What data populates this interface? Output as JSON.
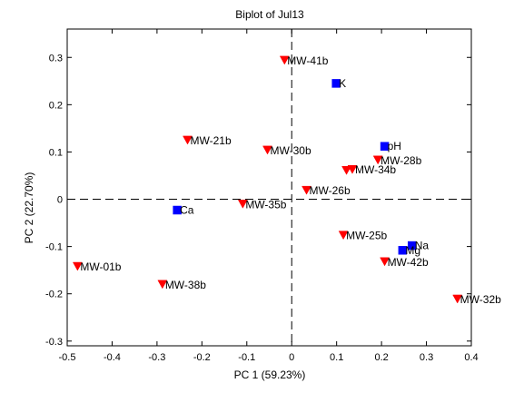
{
  "chart_data": {
    "type": "scatter",
    "title": "Biplot  of Jul13",
    "xlabel": "PC 1 (59.23%)",
    "ylabel": "PC 2 (22.70%)",
    "xlim": [
      -0.5,
      0.4
    ],
    "ylim": [
      -0.31,
      0.36
    ],
    "xticks": [
      -0.5,
      -0.4,
      -0.3,
      -0.2,
      -0.1,
      0,
      0.1,
      0.2,
      0.3,
      0.4
    ],
    "yticks": [
      -0.3,
      -0.2,
      -0.1,
      0,
      0.1,
      0.2,
      0.3
    ],
    "xtick_labels": [
      "-0.5",
      "-0.4",
      "-0.3",
      "-0.2",
      "-0.1",
      "0",
      "0.1",
      "0.2",
      "0.3",
      "0.4"
    ],
    "ytick_labels": [
      "-0.3",
      "-0.2",
      "-0.1",
      "0",
      "0.1",
      "0.2",
      "0.3"
    ],
    "grid": false,
    "reference_lines": {
      "x": 0,
      "y": 0,
      "style": "dashed"
    },
    "series": [
      {
        "marker": "triangle-down",
        "color": "#ff0000",
        "points": [
          {
            "label": "MW-41b",
            "x": -0.016,
            "y": 0.293
          },
          {
            "label": "MW-21b",
            "x": -0.232,
            "y": 0.124
          },
          {
            "label": "MW-30b",
            "x": -0.054,
            "y": 0.103
          },
          {
            "label": "MW-28b",
            "x": 0.192,
            "y": 0.082
          },
          {
            "label": "MW-34b",
            "x": 0.135,
            "y": 0.062
          },
          {
            "label": "",
            "x": 0.122,
            "y": 0.06
          },
          {
            "label": "MW-26b",
            "x": 0.033,
            "y": 0.018
          },
          {
            "label": "MW-35b",
            "x": -0.109,
            "y": -0.011
          },
          {
            "label": "MW-25b",
            "x": 0.115,
            "y": -0.077
          },
          {
            "label": "MW-42b",
            "x": 0.207,
            "y": -0.133
          },
          {
            "label": "MW-01b",
            "x": -0.477,
            "y": -0.143
          },
          {
            "label": "MW-38b",
            "x": -0.288,
            "y": -0.181
          },
          {
            "label": "MW-32b",
            "x": 0.369,
            "y": -0.212
          }
        ]
      },
      {
        "marker": "square",
        "color": "#0000ff",
        "points": [
          {
            "label": "K",
            "x": 0.099,
            "y": 0.245
          },
          {
            "label": "pH",
            "x": 0.207,
            "y": 0.112
          },
          {
            "label": "Ca",
            "x": -0.255,
            "y": -0.023
          },
          {
            "label": "Na",
            "x": 0.268,
            "y": -0.098
          },
          {
            "label": "Mg",
            "x": 0.247,
            "y": -0.108
          }
        ]
      }
    ]
  }
}
